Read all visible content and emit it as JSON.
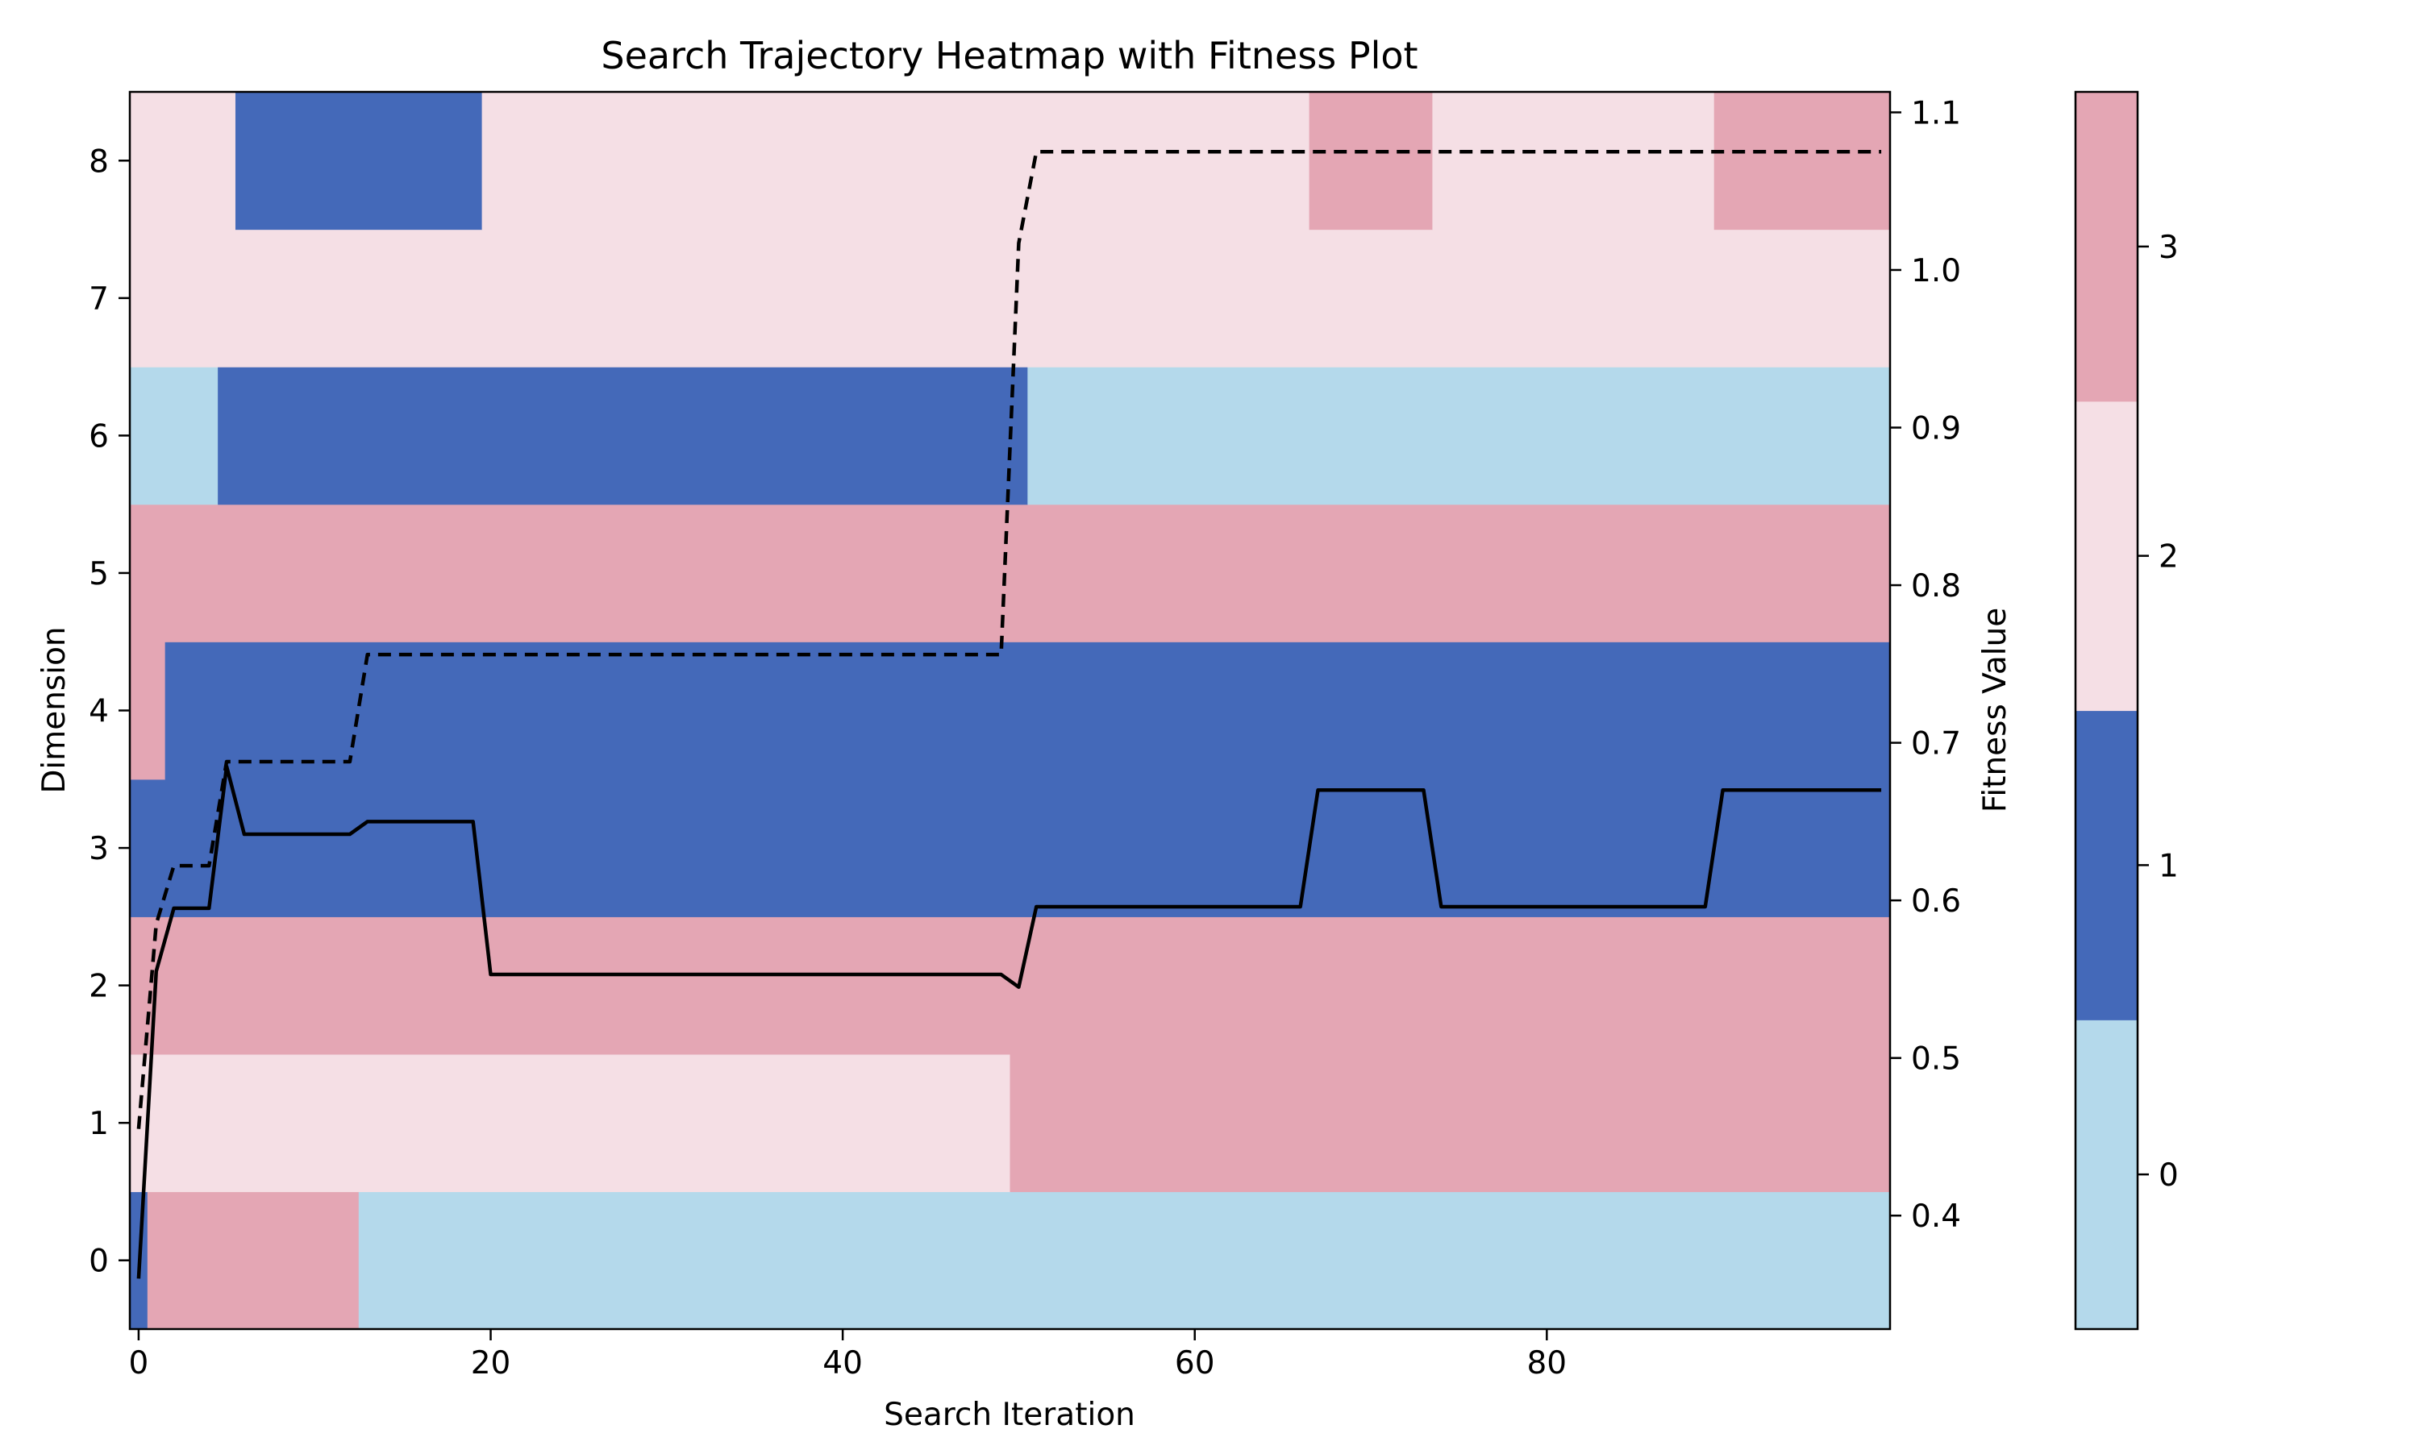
{
  "chart_data": {
    "type": "heatmap",
    "title": "Search Trajectory Heatmap with Fitness Plot",
    "xlabel": "Search Iteration",
    "ylabel": "Dimension",
    "y2label": "Fitness Value",
    "x_ticks": [
      0,
      20,
      40,
      60,
      80
    ],
    "y_ticks": [
      0,
      1,
      2,
      3,
      4,
      5,
      6,
      7,
      8
    ],
    "y2_ticks": [
      0.4,
      0.5,
      0.6,
      0.7,
      0.8,
      0.9,
      1.0,
      1.1
    ],
    "y2_tick_labels": [
      "0.4",
      "0.5",
      "0.6",
      "0.7",
      "0.8",
      "0.9",
      "1.0",
      "1.1"
    ],
    "xlim": [
      -0.5,
      99.5
    ],
    "ylim": [
      -0.5,
      8.5
    ],
    "y2lim": [
      0.328,
      1.113
    ],
    "grid": false,
    "colorbar": {
      "values": [
        0,
        1,
        2,
        3
      ],
      "colors": [
        "#b4d9eb",
        "#4469b9",
        "#f5dfe5",
        "#e4a6b4"
      ],
      "ticks": [
        "0",
        "1",
        "2",
        "3"
      ]
    },
    "heatmap_rows": [
      {
        "dimension": 0,
        "segments": [
          {
            "from": 0,
            "to": 0,
            "value": 1
          },
          {
            "from": 1,
            "to": 12,
            "value": 3
          },
          {
            "from": 13,
            "to": 99,
            "value": 0
          }
        ]
      },
      {
        "dimension": 1,
        "segments": [
          {
            "from": 0,
            "to": 49,
            "value": 2
          },
          {
            "from": 50,
            "to": 99,
            "value": 3
          }
        ]
      },
      {
        "dimension": 2,
        "segments": [
          {
            "from": 0,
            "to": 99,
            "value": 3
          }
        ]
      },
      {
        "dimension": 3,
        "segments": [
          {
            "from": 0,
            "to": 99,
            "value": 1
          }
        ]
      },
      {
        "dimension": 4,
        "segments": [
          {
            "from": 0,
            "to": 1,
            "value": 3
          },
          {
            "from": 2,
            "to": 99,
            "value": 1
          }
        ]
      },
      {
        "dimension": 5,
        "segments": [
          {
            "from": 0,
            "to": 99,
            "value": 3
          }
        ]
      },
      {
        "dimension": 6,
        "segments": [
          {
            "from": 0,
            "to": 4,
            "value": 0
          },
          {
            "from": 5,
            "to": 50,
            "value": 1
          },
          {
            "from": 51,
            "to": 99,
            "value": 0
          }
        ]
      },
      {
        "dimension": 7,
        "segments": [
          {
            "from": 0,
            "to": 99,
            "value": 2
          }
        ]
      },
      {
        "dimension": 8,
        "segments": [
          {
            "from": 0,
            "to": 5,
            "value": 2
          },
          {
            "from": 6,
            "to": 19,
            "value": 1
          },
          {
            "from": 20,
            "to": 66,
            "value": 2
          },
          {
            "from": 67,
            "to": 73,
            "value": 3
          },
          {
            "from": 74,
            "to": 89,
            "value": 2
          },
          {
            "from": 90,
            "to": 99,
            "value": 3
          }
        ]
      }
    ],
    "series": [
      {
        "style": "solid",
        "color": "#000000",
        "x": [
          0,
          1,
          2,
          3,
          4,
          5,
          6,
          7,
          8,
          9,
          10,
          11,
          12,
          13,
          19,
          20,
          49,
          50,
          51,
          66,
          67,
          73,
          74,
          89,
          90,
          99
        ],
        "y": [
          0.36,
          0.555,
          0.595,
          0.595,
          0.595,
          0.685,
          0.642,
          0.642,
          0.642,
          0.642,
          0.642,
          0.642,
          0.642,
          0.65,
          0.65,
          0.553,
          0.553,
          0.545,
          0.596,
          0.596,
          0.67,
          0.67,
          0.596,
          0.596,
          0.67,
          0.67
        ]
      },
      {
        "style": "dashed",
        "color": "#000000",
        "x": [
          0,
          1,
          2,
          3,
          4,
          5,
          6,
          7,
          8,
          9,
          10,
          11,
          12,
          13,
          49,
          50,
          51,
          99
        ],
        "y": [
          0.455,
          0.585,
          0.622,
          0.622,
          0.622,
          0.688,
          0.688,
          0.688,
          0.688,
          0.688,
          0.688,
          0.688,
          0.688,
          0.756,
          0.756,
          1.017,
          1.075,
          1.075
        ]
      }
    ]
  }
}
